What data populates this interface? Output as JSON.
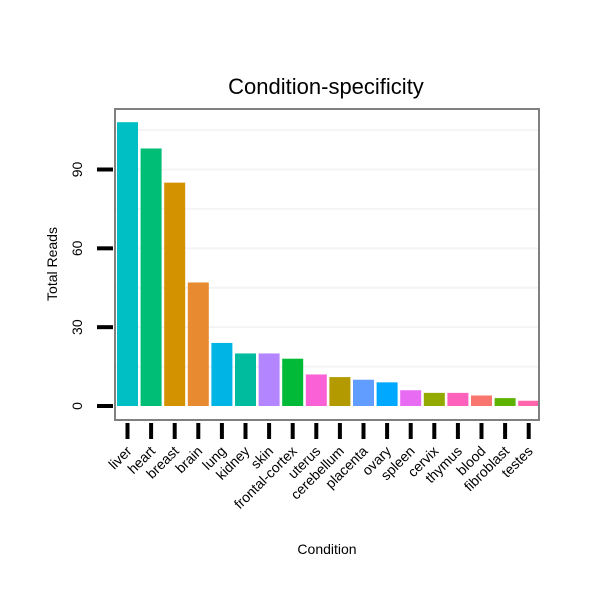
{
  "chart_data": {
    "type": "bar",
    "title": "Condition-specificity",
    "xlabel": "Condition",
    "ylabel": "Total Reads",
    "ylim": [
      0,
      112
    ],
    "yticks": [
      0,
      30,
      60,
      90
    ],
    "grid": true,
    "categories": [
      "liver",
      "heart",
      "breast",
      "brain",
      "lung",
      "kidney",
      "skin",
      "frontal-cortex",
      "uterus",
      "cerebellum",
      "placenta",
      "ovary",
      "spleen",
      "cervix",
      "thymus",
      "blood",
      "fibroblast",
      "testes"
    ],
    "values": [
      108,
      98,
      85,
      47,
      24,
      20,
      20,
      18,
      12,
      11,
      10,
      9,
      6,
      5,
      5,
      4,
      3,
      2
    ],
    "colors": [
      "#00BFC4",
      "#00BE76",
      "#D39200",
      "#E78A30",
      "#00B4E6",
      "#00BC9E",
      "#B385FF",
      "#00BA38",
      "#FB61D7",
      "#B39A00",
      "#619CFF",
      "#00A9FF",
      "#E76BF3",
      "#93AA00",
      "#FF62BC",
      "#F8766D",
      "#5EB300",
      "#FF65AC"
    ]
  }
}
